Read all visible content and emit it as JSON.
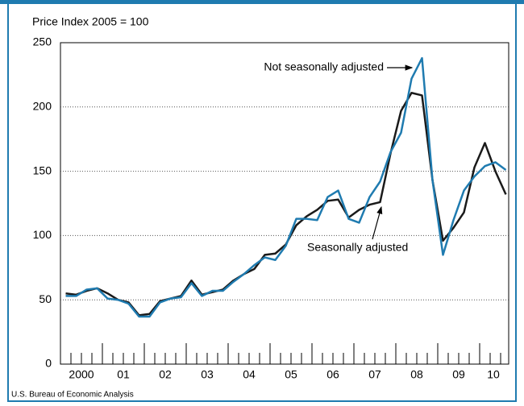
{
  "chart_data": {
    "type": "line",
    "ylabel": "Price Index 2005 = 100",
    "source": "U.S. Bureau of Economic Analysis",
    "categories": [
      null,
      "2000",
      null,
      null,
      null,
      "01",
      null,
      null,
      null,
      "02",
      null,
      null,
      null,
      "03",
      null,
      null,
      null,
      "04",
      null,
      null,
      null,
      "05",
      null,
      null,
      null,
      "06",
      null,
      null,
      null,
      "07",
      null,
      null,
      null,
      "08",
      null,
      null,
      null,
      "09",
      null,
      null,
      null,
      "10",
      null
    ],
    "series": [
      {
        "name": "Seasonally adjusted",
        "color": "#1a1a1a",
        "values": [
          55,
          54,
          57,
          59,
          55,
          50,
          48,
          38,
          39,
          49,
          51,
          53,
          65,
          54,
          56,
          58,
          65,
          70,
          74,
          85,
          86,
          93,
          108,
          115,
          120,
          127,
          128,
          114,
          120,
          124,
          126,
          164,
          197,
          211,
          209,
          143,
          96,
          106,
          118,
          153,
          172,
          150,
          132
        ]
      },
      {
        "name": "Not seasonally adjusted",
        "color": "#1f7bb0",
        "values": [
          53,
          53,
          58,
          59,
          51,
          50,
          47,
          37,
          37,
          48,
          51,
          52,
          63,
          53,
          57,
          57,
          64,
          70,
          77,
          83,
          81,
          92,
          113,
          113,
          112,
          130,
          135,
          113,
          110,
          130,
          142,
          165,
          180,
          222,
          238,
          143,
          85,
          112,
          135,
          146,
          154,
          157,
          151
        ]
      }
    ],
    "ylim": [
      0,
      250
    ],
    "yticks": [
      0,
      50,
      100,
      150,
      200,
      250
    ],
    "grid": true
  }
}
